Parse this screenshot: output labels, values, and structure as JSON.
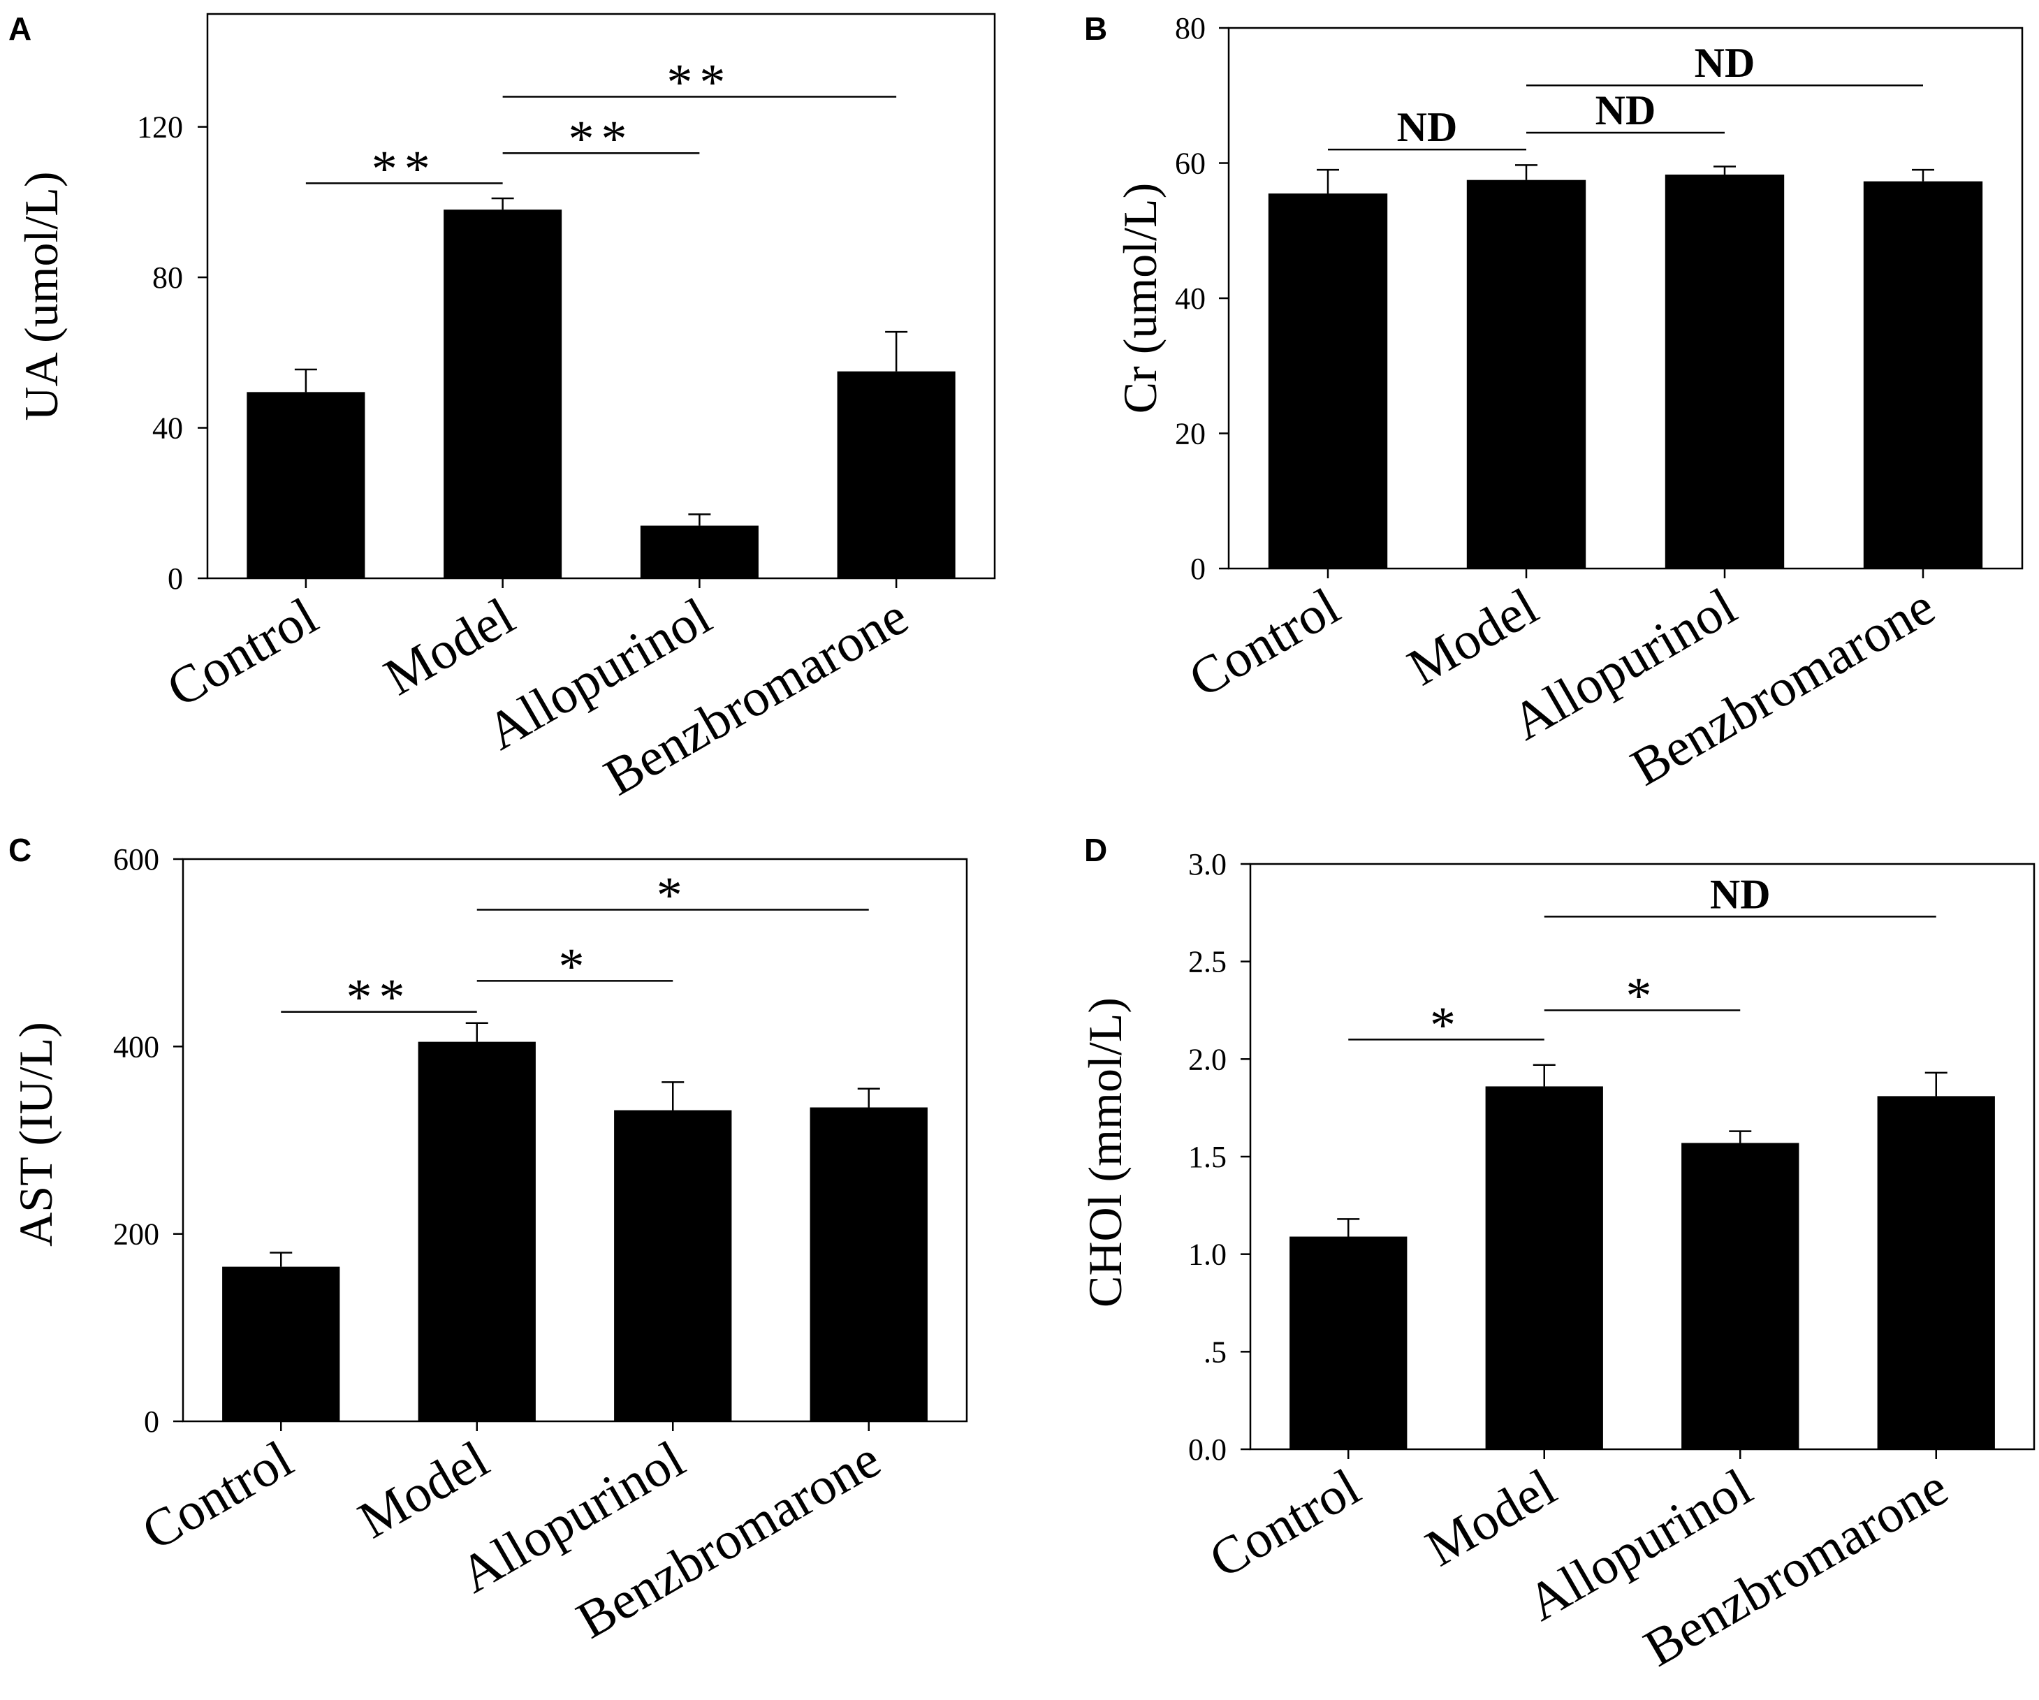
{
  "chart_data": [
    {
      "type": "bar",
      "panel": "A",
      "title": "",
      "xlabel": "",
      "ylabel": "UA (umol/L)",
      "categories": [
        "Control",
        "Model",
        "Allopurinol",
        "Benzbromarone"
      ],
      "values": [
        49.5,
        98.0,
        14.0,
        55.0
      ],
      "errors": [
        6.0,
        3.0,
        3.0,
        10.5
      ],
      "ylim": [
        0,
        150
      ],
      "yticks": [
        0,
        40,
        80,
        120
      ],
      "ytick_labels": [
        "0",
        "40",
        "80",
        "120"
      ],
      "grid": false,
      "annotations": [
        {
          "from": 0,
          "to": 1,
          "label": "**",
          "y": 105
        },
        {
          "from": 1,
          "to": 2,
          "label": "**",
          "y": 113
        },
        {
          "from": 1,
          "to": 3,
          "label": "**",
          "y": 128
        }
      ]
    },
    {
      "type": "bar",
      "panel": "B",
      "title": "",
      "xlabel": "",
      "ylabel": "Cr (umol/L)",
      "categories": [
        "Control",
        "Model",
        "Allopurinol",
        "Benzbromarone"
      ],
      "values": [
        55.5,
        57.5,
        58.3,
        57.3
      ],
      "errors": [
        3.5,
        2.2,
        1.2,
        1.7
      ],
      "ylim": [
        0,
        80
      ],
      "yticks": [
        0,
        20,
        40,
        60,
        80
      ],
      "ytick_labels": [
        "0",
        "20",
        "40",
        "60",
        "80"
      ],
      "grid": false,
      "annotations": [
        {
          "from": 0,
          "to": 1,
          "label": "ND",
          "y": 62
        },
        {
          "from": 1,
          "to": 2,
          "label": "ND",
          "y": 64.5
        },
        {
          "from": 1,
          "to": 3,
          "label": "ND",
          "y": 71.5
        }
      ]
    },
    {
      "type": "bar",
      "panel": "C",
      "title": "",
      "xlabel": "",
      "ylabel": "AST (IU/L)",
      "categories": [
        "Control",
        "Model",
        "Allopurinol",
        "Benzbromarone"
      ],
      "values": [
        165,
        405,
        332,
        335
      ],
      "errors": [
        15,
        20,
        30,
        20
      ],
      "ylim": [
        0,
        600
      ],
      "yticks": [
        0,
        200,
        400,
        600
      ],
      "ytick_labels": [
        "0",
        "200",
        "400",
        "600"
      ],
      "grid": false,
      "annotations": [
        {
          "from": 0,
          "to": 1,
          "label": "**",
          "y": 437
        },
        {
          "from": 1,
          "to": 2,
          "label": "*",
          "y": 470
        },
        {
          "from": 1,
          "to": 3,
          "label": "*",
          "y": 546
        }
      ]
    },
    {
      "type": "bar",
      "panel": "D",
      "title": "",
      "xlabel": "",
      "ylabel": "CHOl (mmol/L)",
      "categories": [
        "Control",
        "Model",
        "Allopurinol",
        "Benzbromarone"
      ],
      "values": [
        1.09,
        1.86,
        1.57,
        1.81
      ],
      "errors": [
        0.09,
        0.11,
        0.06,
        0.12
      ],
      "ylim": [
        0,
        3.0
      ],
      "yticks": [
        0,
        0.5,
        1.0,
        1.5,
        2.0,
        2.5,
        3.0
      ],
      "ytick_labels": [
        "0.0",
        ".5",
        "1.0",
        "1.5",
        "2.0",
        "2.5",
        "3.0"
      ],
      "grid": false,
      "annotations": [
        {
          "from": 0,
          "to": 1,
          "label": "*",
          "y": 2.1
        },
        {
          "from": 1,
          "to": 2,
          "label": "*",
          "y": 2.25
        },
        {
          "from": 1,
          "to": 3,
          "label": "ND",
          "y": 2.73
        }
      ]
    }
  ]
}
